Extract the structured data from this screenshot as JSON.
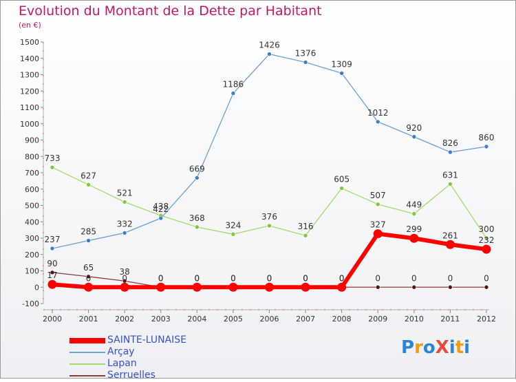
{
  "chart_data": {
    "type": "line",
    "title": "Evolution du Montant de la Dette par Habitant",
    "subtitle": "(en €)",
    "xlabel": "",
    "ylabel": "",
    "categories": [
      "2000",
      "2001",
      "2002",
      "2003",
      "2004",
      "2005",
      "2006",
      "2007",
      "2008",
      "2009",
      "2010",
      "2011",
      "2012"
    ],
    "ylim": [
      -100,
      1500
    ],
    "yticks": [
      -100,
      0,
      100,
      200,
      300,
      400,
      500,
      600,
      700,
      800,
      900,
      1000,
      1100,
      1200,
      1300,
      1400,
      1500
    ],
    "grid": false,
    "legend_position": "bottom-left",
    "series": [
      {
        "name": "SAINTE-LUNAISE",
        "color": "#ff0000",
        "marker_color": "#ff0000",
        "width": 6,
        "marker": 6.5,
        "values": [
          17,
          0,
          0,
          0,
          0,
          0,
          0,
          0,
          0,
          327,
          299,
          261,
          232
        ],
        "labels": [
          "17",
          "0",
          "0",
          "0",
          "0",
          "0",
          "0",
          "0",
          "0",
          "327",
          "299",
          "261",
          "232"
        ]
      },
      {
        "name": "Arçay",
        "color": "#6a9fd8",
        "marker_color": "#3a7fc8",
        "width": 1.3,
        "marker": 3,
        "values": [
          237,
          285,
          332,
          422,
          669,
          1186,
          1426,
          1376,
          1309,
          1012,
          920,
          826,
          860
        ],
        "labels": [
          "237",
          "285",
          "332",
          "422",
          "669",
          "1186",
          "1426",
          "1376",
          "1309",
          "1012",
          "920",
          "826",
          "860"
        ]
      },
      {
        "name": "Lapan",
        "color": "#a6d96a",
        "marker_color": "#7ec83a",
        "width": 1.3,
        "marker": 3,
        "values": [
          733,
          627,
          521,
          438,
          368,
          324,
          376,
          316,
          605,
          507,
          449,
          631,
          300
        ],
        "labels": [
          "733",
          "627",
          "521",
          "438",
          "368",
          "324",
          "376",
          "316",
          "605",
          "507",
          "449",
          "631",
          "300"
        ]
      },
      {
        "name": "Serruelles",
        "color": "#8b3a3a",
        "marker_color": "#5a1010",
        "width": 1.3,
        "marker": 3,
        "values": [
          90,
          65,
          38,
          0,
          0,
          0,
          0,
          0,
          0,
          0,
          0,
          0,
          0
        ],
        "labels": [
          "90",
          "65",
          "38",
          "0",
          "0",
          "0",
          "0",
          "0",
          "0",
          "0",
          "0",
          "0",
          "0"
        ]
      }
    ]
  },
  "logo": {
    "text": "ProXiti",
    "letters": [
      "P",
      "r",
      "o",
      "X",
      "i",
      "t",
      "i"
    ],
    "colors": [
      "#2b84d6",
      "#f39c12",
      "#2b84d6",
      "#e74c3c",
      "#2b84d6",
      "#f39c12",
      "#2b84d6"
    ]
  }
}
